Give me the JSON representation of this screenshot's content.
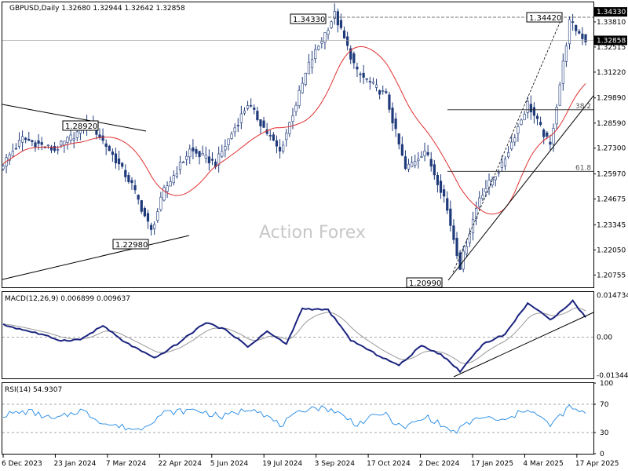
{
  "chart_data": [
    {
      "type": "candlestick",
      "header": "GBPUSD,Daily  1.32680 1.32944 1.32642 1.32858",
      "watermark": "Action Forex",
      "ylim": [
        1.2012,
        1.3482
      ],
      "y_tick_labels": [
        "1.34330",
        "1.33810",
        "1.32515",
        "1.31220",
        "1.29890",
        "1.28590",
        "1.27300",
        "1.25970",
        "1.24675",
        "1.23345",
        "1.22050",
        "1.20755"
      ],
      "current_price_label": "1.32858",
      "current_price": 1.32858,
      "x_tick_labels": [
        "6 Dec 2023",
        "23 Jan 2024",
        "7 Mar 2024",
        "22 Apr 2024",
        "5 Jun 2024",
        "19 Jul 2024",
        "3 Sep 2024",
        "17 Oct 2024",
        "2 Dec 2024",
        "17 Jan 2025",
        "4 Mar 2025",
        "17 Apr 2025"
      ],
      "annotations": [
        {
          "label": "1.28920",
          "value": 1.2892
        },
        {
          "label": "1.22980",
          "value": 1.2298
        },
        {
          "label": "1.34330",
          "value": 1.3433
        },
        {
          "label": "1.20990",
          "value": 1.2099
        },
        {
          "label": "1.34420",
          "value": 1.3442
        }
      ],
      "fibonacci_levels": [
        {
          "label": "38.2",
          "value": 1.2928
        },
        {
          "label": "61.8",
          "value": 1.261
        }
      ],
      "series_colors": {
        "candles": "#1f3a7a",
        "moving_average": "#e03030",
        "trendline": "#000000"
      },
      "grid": false,
      "candles_ohlc_guide": [
        {
          "t": 0,
          "close": 1.265
        },
        {
          "t": 6,
          "close": 1.278
        },
        {
          "t": 16,
          "close": 1.272
        },
        {
          "t": 27,
          "close": 1.286
        },
        {
          "t": 33,
          "close": 1.272
        },
        {
          "t": 40,
          "close": 1.254
        },
        {
          "t": 46,
          "close": 1.23
        },
        {
          "t": 50,
          "close": 1.251
        },
        {
          "t": 58,
          "close": 1.272
        },
        {
          "t": 66,
          "close": 1.265
        },
        {
          "t": 76,
          "close": 1.296
        },
        {
          "t": 86,
          "close": 1.271
        },
        {
          "t": 95,
          "close": 1.316
        },
        {
          "t": 103,
          "close": 1.342
        },
        {
          "t": 110,
          "close": 1.312
        },
        {
          "t": 119,
          "close": 1.3
        },
        {
          "t": 125,
          "close": 1.262
        },
        {
          "t": 131,
          "close": 1.272
        },
        {
          "t": 137,
          "close": 1.248
        },
        {
          "t": 142,
          "close": 1.212
        },
        {
          "t": 148,
          "close": 1.248
        },
        {
          "t": 155,
          "close": 1.264
        },
        {
          "t": 163,
          "close": 1.296
        },
        {
          "t": 170,
          "close": 1.274
        },
        {
          "t": 176,
          "close": 1.338
        },
        {
          "t": 181,
          "close": 1.3286
        }
      ]
    },
    {
      "type": "line",
      "header": "MACD(12,26,9) 0.006899 0.009637",
      "ylim": [
        -0.0145,
        0.0158
      ],
      "y_tick_labels": [
        "0.014734",
        "0.00",
        "-0.013442"
      ],
      "zero_label": "0.00",
      "series_colors": {
        "macd": "#1a237e",
        "signal": "#999999"
      },
      "macd_guide": [
        {
          "t": 0,
          "v": 0.0043
        },
        {
          "t": 10,
          "v": 0.0015
        },
        {
          "t": 18,
          "v": -0.0012
        },
        {
          "t": 24,
          "v": -0.0009
        },
        {
          "t": 31,
          "v": 0.004
        },
        {
          "t": 37,
          "v": -0.0012
        },
        {
          "t": 47,
          "v": -0.0075
        },
        {
          "t": 54,
          "v": -0.0025
        },
        {
          "t": 63,
          "v": 0.0052
        },
        {
          "t": 70,
          "v": 0.002
        },
        {
          "t": 76,
          "v": -0.0035
        },
        {
          "t": 82,
          "v": 0.002
        },
        {
          "t": 88,
          "v": -0.0025
        },
        {
          "t": 93,
          "v": 0.01
        },
        {
          "t": 101,
          "v": 0.0095
        },
        {
          "t": 108,
          "v": -0.001
        },
        {
          "t": 115,
          "v": -0.0055
        },
        {
          "t": 123,
          "v": -0.01
        },
        {
          "t": 130,
          "v": -0.003
        },
        {
          "t": 136,
          "v": -0.006
        },
        {
          "t": 142,
          "v": -0.012
        },
        {
          "t": 149,
          "v": -0.0025
        },
        {
          "t": 156,
          "v": 0.001
        },
        {
          "t": 163,
          "v": 0.012
        },
        {
          "t": 170,
          "v": 0.006
        },
        {
          "t": 177,
          "v": 0.0127
        },
        {
          "t": 181,
          "v": 0.0069
        }
      ]
    },
    {
      "type": "line",
      "header": "RSI(14) 54.9307",
      "ylim": [
        0,
        100
      ],
      "y_tick_labels": [
        "100",
        "70",
        "30",
        "0"
      ],
      "levels": [
        70,
        30
      ],
      "series_colors": {
        "rsi": "#1e88e5"
      },
      "rsi_guide": [
        {
          "t": 0,
          "v": 55
        },
        {
          "t": 8,
          "v": 60
        },
        {
          "t": 16,
          "v": 48
        },
        {
          "t": 24,
          "v": 62
        },
        {
          "t": 32,
          "v": 42
        },
        {
          "t": 42,
          "v": 34
        },
        {
          "t": 50,
          "v": 58
        },
        {
          "t": 60,
          "v": 62
        },
        {
          "t": 68,
          "v": 52
        },
        {
          "t": 78,
          "v": 66
        },
        {
          "t": 86,
          "v": 40
        },
        {
          "t": 95,
          "v": 66
        },
        {
          "t": 102,
          "v": 63
        },
        {
          "t": 110,
          "v": 42
        },
        {
          "t": 118,
          "v": 58
        },
        {
          "t": 124,
          "v": 36
        },
        {
          "t": 132,
          "v": 52
        },
        {
          "t": 140,
          "v": 30
        },
        {
          "t": 148,
          "v": 52
        },
        {
          "t": 156,
          "v": 46
        },
        {
          "t": 163,
          "v": 65
        },
        {
          "t": 170,
          "v": 40
        },
        {
          "t": 176,
          "v": 66
        },
        {
          "t": 181,
          "v": 55
        }
      ]
    }
  ]
}
